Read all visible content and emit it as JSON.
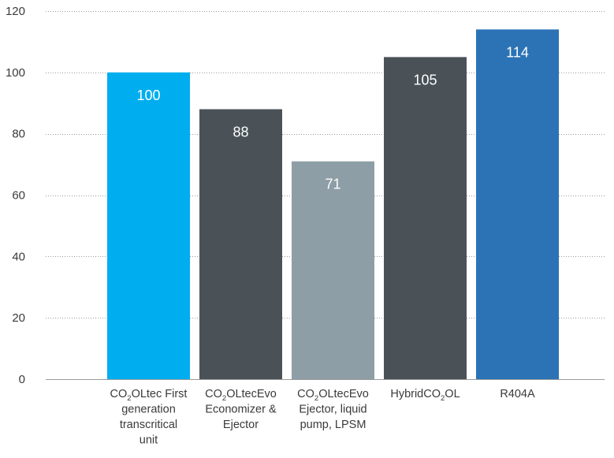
{
  "chart_data": {
    "type": "bar",
    "categories": [
      "CO2OLtec First generation transcritical unit",
      "CO2OLtecEvo Economizer & Ejector",
      "CO2OLtecEvo Ejector, liquid pump, LPSM",
      "HybridCO2OL",
      "R404A"
    ],
    "category_label_lines": [
      [
        [
          "CO",
          "2",
          "OLtec First"
        ],
        [
          "generation"
        ],
        [
          "transcritical"
        ],
        [
          "unit"
        ]
      ],
      [
        [
          "CO",
          "2",
          "OLtecEvo"
        ],
        [
          "Economizer &"
        ],
        [
          "Ejector"
        ]
      ],
      [
        [
          "CO",
          "2",
          "OLtecEvo"
        ],
        [
          "Ejector, liquid"
        ],
        [
          "pump, LPSM"
        ]
      ],
      [
        [
          "HybridCO",
          "2",
          "OL"
        ]
      ],
      [
        [
          "R404A"
        ]
      ]
    ],
    "values": [
      100,
      88,
      71,
      105,
      114
    ],
    "data_labels": [
      "100",
      "88",
      "71",
      "105",
      "114"
    ],
    "colors": [
      "#00aeef",
      "#4a5258",
      "#8e9ea6",
      "#4a5258",
      "#2b73b5"
    ],
    "ylim": [
      0,
      120
    ],
    "yticks": [
      0,
      20,
      40,
      60,
      80,
      100,
      120
    ],
    "ytick_labels": [
      "0",
      "20",
      "40",
      "60",
      "80",
      "100",
      "120"
    ],
    "grid": true,
    "title": "",
    "xlabel": "",
    "ylabel": ""
  }
}
